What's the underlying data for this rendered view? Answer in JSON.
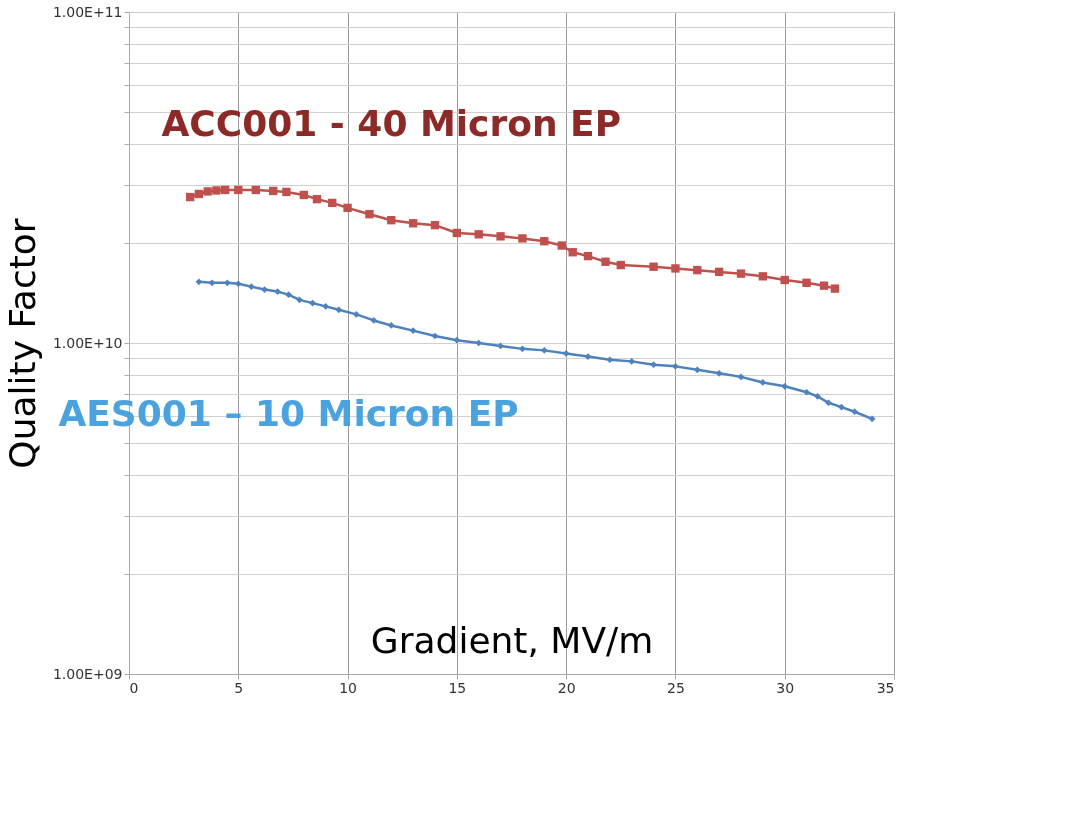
{
  "chart_data": {
    "type": "line",
    "xlabel": "Gradient, MV/m",
    "ylabel": "Quality Factor",
    "log": "y",
    "xlim": [
      0,
      35
    ],
    "xticks": [
      0,
      5,
      10,
      15,
      20,
      25,
      30,
      35
    ],
    "ylim": [
      1000000000.0,
      100000000000.0
    ],
    "yticks": [
      {
        "value": 1000000000.0,
        "label": "1.00E+09"
      },
      {
        "value": 2000000000.0,
        "label": null
      },
      {
        "value": 3000000000.0,
        "label": null
      },
      {
        "value": 4000000000.0,
        "label": null
      },
      {
        "value": 5000000000.0,
        "label": null
      },
      {
        "value": 6000000000.0,
        "label": null
      },
      {
        "value": 7000000000.0,
        "label": null
      },
      {
        "value": 8000000000.0,
        "label": null
      },
      {
        "value": 9000000000.0,
        "label": null
      },
      {
        "value": 10000000000.0,
        "label": "1.00E+10"
      },
      {
        "value": 20000000000.0,
        "label": null
      },
      {
        "value": 30000000000.0,
        "label": null
      },
      {
        "value": 40000000000.0,
        "label": null
      },
      {
        "value": 50000000000.0,
        "label": null
      },
      {
        "value": 60000000000.0,
        "label": null
      },
      {
        "value": 70000000000.0,
        "label": null
      },
      {
        "value": 80000000000.0,
        "label": null
      },
      {
        "value": 90000000000.0,
        "label": null
      },
      {
        "value": 100000000000.0,
        "label": "1.00E+11"
      }
    ],
    "grid": true,
    "legend": false,
    "line_style": "solid",
    "series": [
      {
        "name": "ACC001 - 40 Micron EP",
        "color": "#c0504d",
        "marker": "square",
        "x": [
          2.8,
          3.2,
          3.6,
          4.0,
          4.4,
          5.0,
          5.8,
          6.6,
          7.2,
          8.0,
          8.6,
          9.3,
          10.0,
          11.0,
          12.0,
          13.0,
          14.0,
          15.0,
          16.0,
          17.0,
          18.0,
          19.0,
          19.8,
          20.3,
          21.0,
          21.8,
          22.5,
          24.0,
          25.0,
          26.0,
          27.0,
          28.0,
          29.0,
          30.0,
          31.0,
          31.8,
          32.3
        ],
        "values": [
          27600000000.0,
          28200000000.0,
          28700000000.0,
          28900000000.0,
          29000000000.0,
          29000000000.0,
          29000000000.0,
          28800000000.0,
          28600000000.0,
          28000000000.0,
          27200000000.0,
          26500000000.0,
          25600000000.0,
          24500000000.0,
          23500000000.0,
          23000000000.0,
          22700000000.0,
          21500000000.0,
          21300000000.0,
          21000000000.0,
          20700000000.0,
          20300000000.0,
          19700000000.0,
          18800000000.0,
          18300000000.0,
          17600000000.0,
          17200000000.0,
          17000000000.0,
          16800000000.0,
          16600000000.0,
          16400000000.0,
          16200000000.0,
          15900000000.0,
          15500000000.0,
          15200000000.0,
          14900000000.0,
          14600000000.0
        ]
      },
      {
        "name": "AES001 – 10 Micron EP",
        "color": "#4f81bd",
        "marker": "diamond",
        "x": [
          3.2,
          3.8,
          4.5,
          5.0,
          5.6,
          6.2,
          6.8,
          7.3,
          7.8,
          8.4,
          9.0,
          9.6,
          10.4,
          11.2,
          12.0,
          13.0,
          14.0,
          15.0,
          16.0,
          17.0,
          18.0,
          19.0,
          20.0,
          21.0,
          22.0,
          23.0,
          24.0,
          25.0,
          26.0,
          27.0,
          28.0,
          29.0,
          30.0,
          31.0,
          31.5,
          32.0,
          32.6,
          33.2,
          34.0
        ],
        "values": [
          15300000000.0,
          15200000000.0,
          15200000000.0,
          15100000000.0,
          14800000000.0,
          14500000000.0,
          14300000000.0,
          14000000000.0,
          13500000000.0,
          13200000000.0,
          12900000000.0,
          12600000000.0,
          12200000000.0,
          11700000000.0,
          11300000000.0,
          10900000000.0,
          10500000000.0,
          10200000000.0,
          10000000000.0,
          9800000000.0,
          9600000000.0,
          9500000000.0,
          9300000000.0,
          9100000000.0,
          8900000000.0,
          8800000000.0,
          8600000000.0,
          8500000000.0,
          8300000000.0,
          8100000000.0,
          7900000000.0,
          7600000000.0,
          7400000000.0,
          7100000000.0,
          6900000000.0,
          6600000000.0,
          6400000000.0,
          6200000000.0,
          5900000000.0
        ]
      }
    ]
  }
}
